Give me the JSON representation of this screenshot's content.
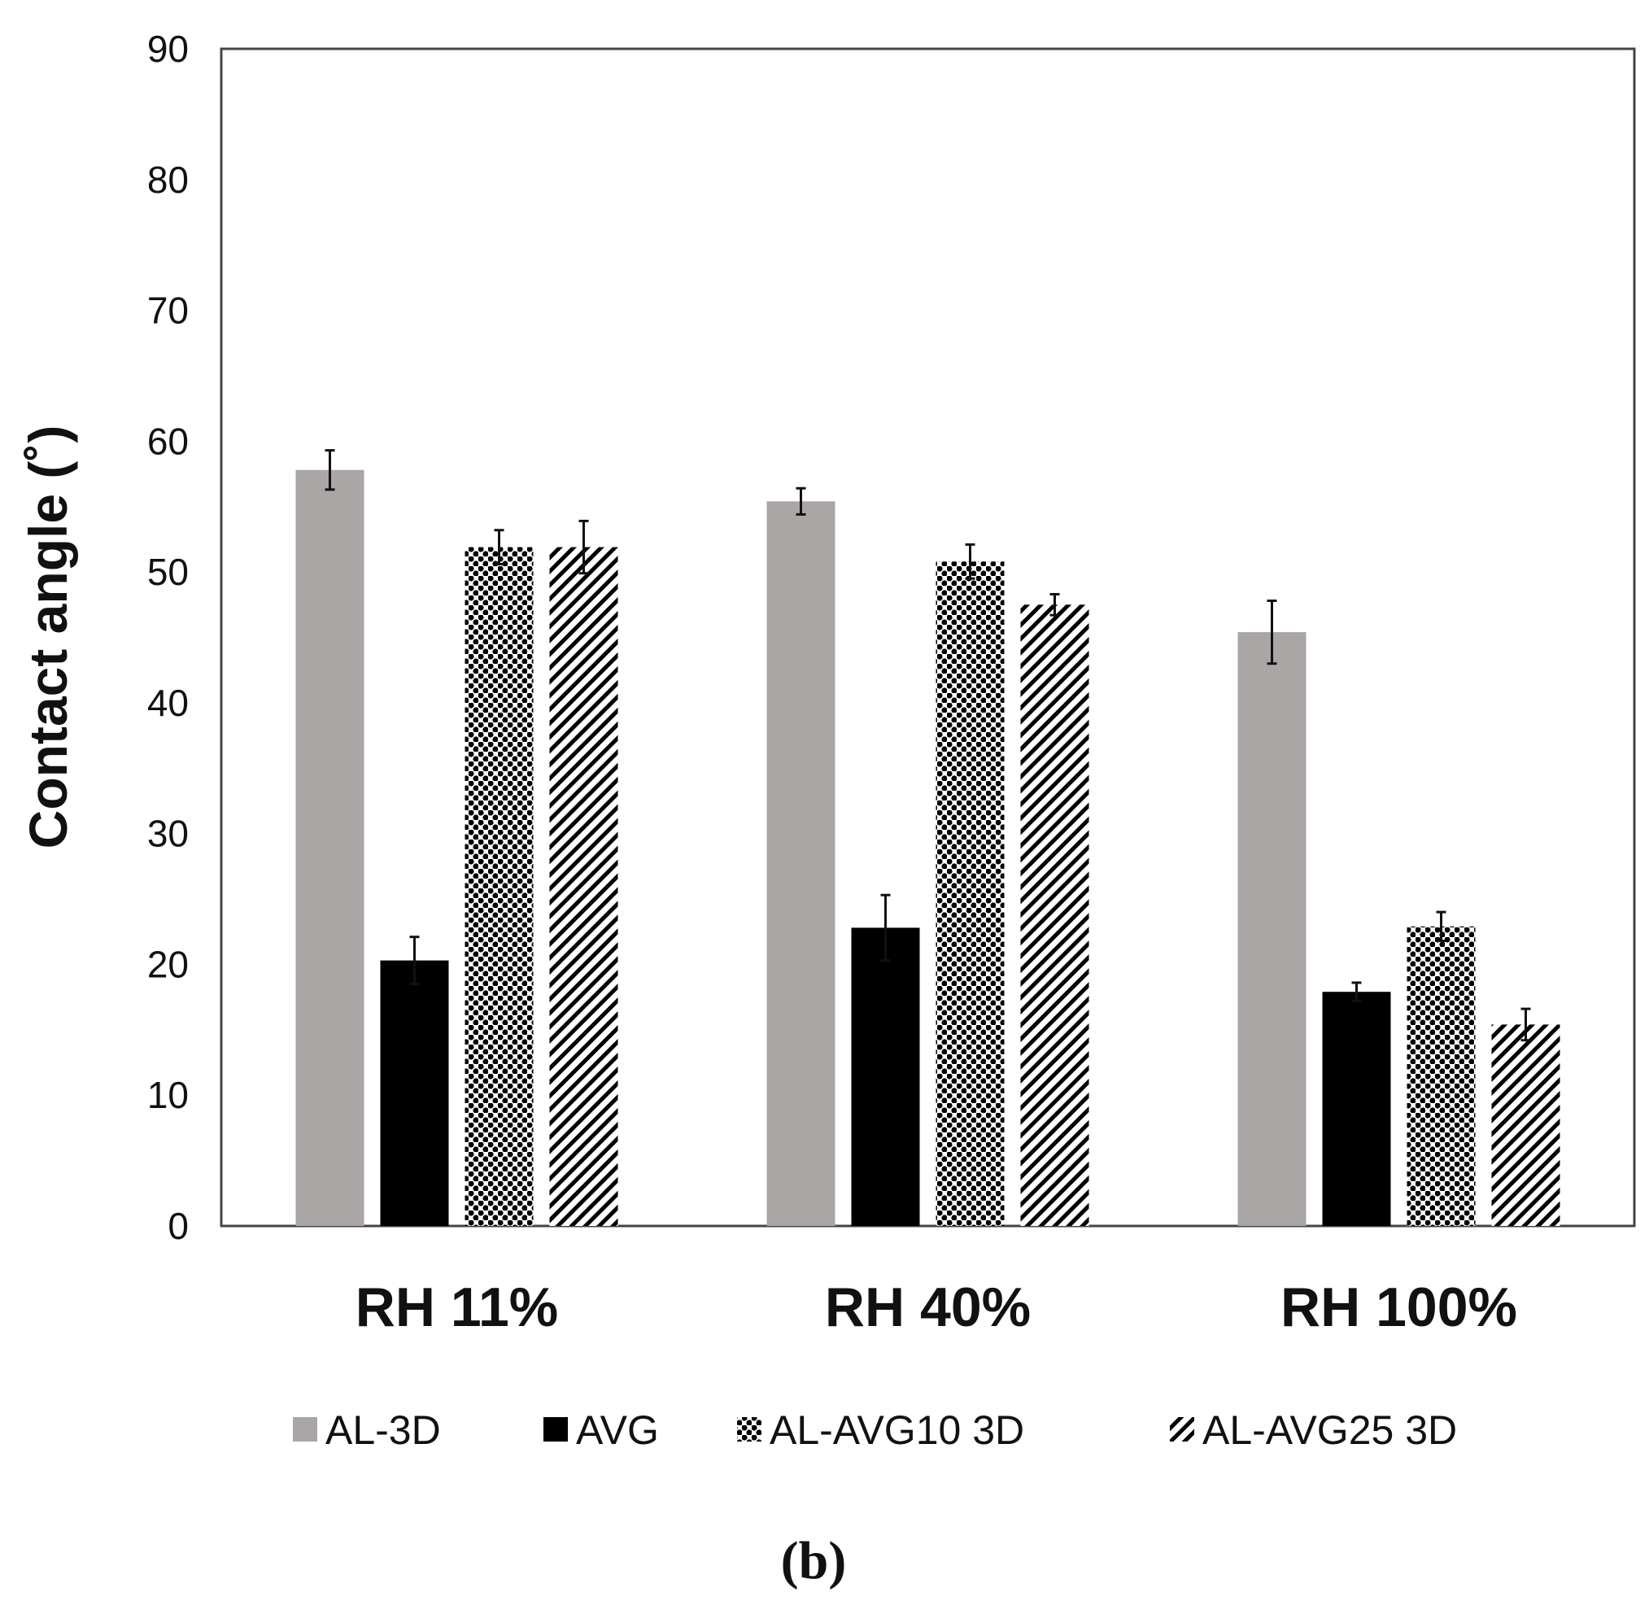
{
  "chart_data": {
    "type": "bar",
    "title": "",
    "xlabel": "",
    "ylabel": "Contact angle (˚)",
    "ylim": [
      0,
      90
    ],
    "yticks": [
      0,
      10,
      20,
      30,
      40,
      50,
      60,
      70,
      80,
      90
    ],
    "grid": false,
    "legend_position": "bottom",
    "categories": [
      "RH 11%",
      "RH 40%",
      "RH 100%"
    ],
    "series": [
      {
        "name": "AL-3D",
        "fill": "solid",
        "color": "#aaa6a6",
        "values": [
          57.8,
          55.4,
          45.4
        ],
        "errors": [
          1.5,
          1.0,
          2.4
        ]
      },
      {
        "name": "AVG",
        "fill": "solid",
        "color": "#000000",
        "values": [
          20.3,
          22.8,
          17.9
        ],
        "errors": [
          1.8,
          2.5,
          0.7
        ]
      },
      {
        "name": "AL-AVG10 3D",
        "fill": "dots",
        "color": "#000000",
        "values": [
          51.9,
          50.8,
          22.9
        ],
        "errors": [
          1.3,
          1.3,
          1.1
        ]
      },
      {
        "name": "AL-AVG25 3D",
        "fill": "hatch",
        "color": "#000000",
        "values": [
          51.9,
          47.5,
          15.4
        ],
        "errors": [
          2.0,
          0.8,
          1.2
        ]
      }
    ]
  },
  "panel_label": "(b)"
}
